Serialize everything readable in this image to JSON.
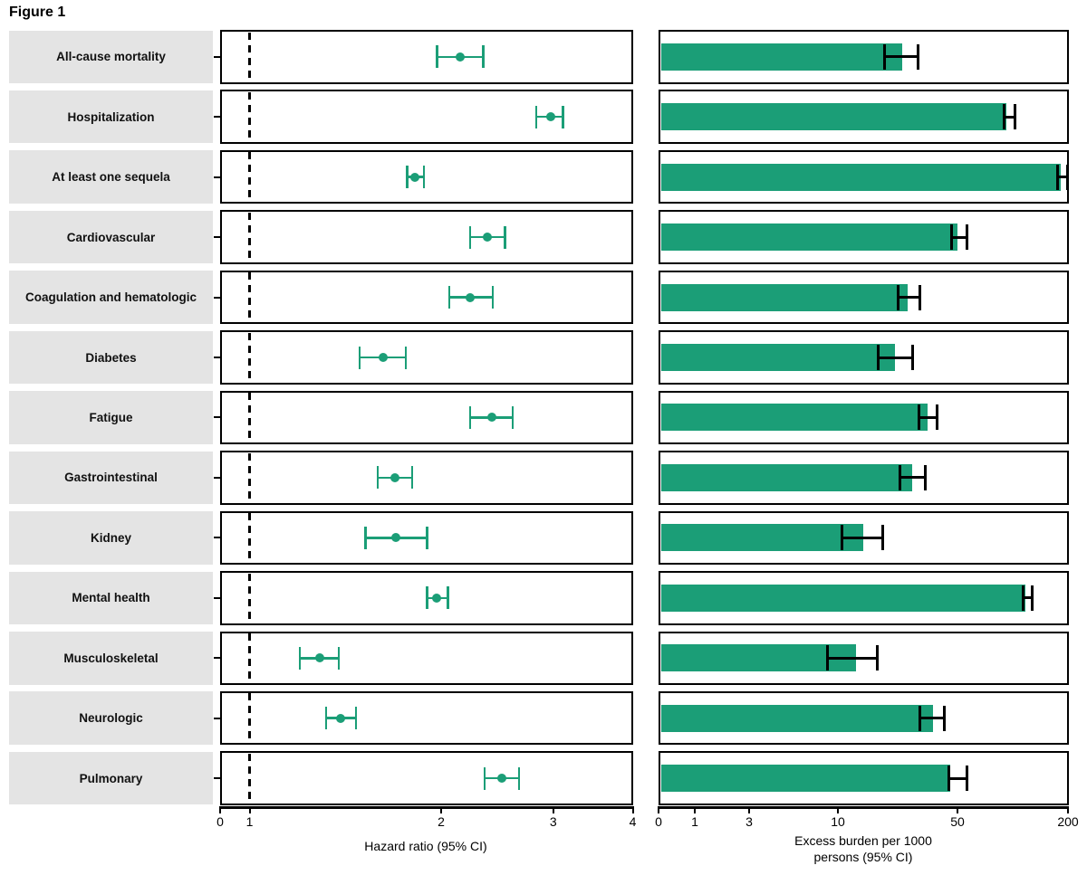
{
  "figure": {
    "title": "Figure 1"
  },
  "colors": {
    "accent_green": "#1B9E77",
    "row_label_bg": "#e4e4e4",
    "axis_black": "#000000"
  },
  "chart_data": [
    {
      "type": "scatter",
      "subtype": "forest-plot-hazard-ratios",
      "title": "",
      "xlabel": "Hazard ratio (95% CI)",
      "x_ticks": [
        0,
        1,
        2,
        3,
        4
      ],
      "x_scale": "log10 from 1 to 4; 0 shown as broken-axis stub at panel left edge",
      "xlim": [
        0,
        4
      ],
      "reference_line_x": 1,
      "grid": false,
      "legend": "none",
      "categories": [
        "All-cause mortality",
        "Hospitalization",
        "At least one sequela",
        "Cardiovascular",
        "Coagulation and hematologic",
        "Diabetes",
        "Fatigue",
        "Gastrointestinal",
        "Kidney",
        "Mental health",
        "Musculoskeletal",
        "Neurologic",
        "Pulmonary"
      ],
      "series": [
        {
          "name": "hazard_ratio",
          "values": [
            2.14,
            2.97,
            1.82,
            2.36,
            2.22,
            1.62,
            2.4,
            1.69,
            1.7,
            1.97,
            1.29,
            1.39,
            2.49
          ],
          "ci_low": [
            1.97,
            2.82,
            1.77,
            2.22,
            2.06,
            1.49,
            2.22,
            1.59,
            1.52,
            1.9,
            1.2,
            1.32,
            2.34
          ],
          "ci_high": [
            2.33,
            3.11,
            1.88,
            2.52,
            2.41,
            1.76,
            2.59,
            1.8,
            1.9,
            2.05,
            1.38,
            1.47,
            2.65
          ]
        }
      ]
    },
    {
      "type": "bar",
      "subtype": "horizontal-bars-with-ci",
      "title": "",
      "xlabel": "Excess burden per 1000\npersons (95% CI)",
      "x_ticks": [
        0,
        1,
        3,
        10,
        50,
        200
      ],
      "x_scale": "nonlinear (log-like) with ticks 0,1,3,10,50,200",
      "xlim": [
        0,
        200
      ],
      "grid": false,
      "legend": "none",
      "categories": [
        "All-cause mortality",
        "Hospitalization",
        "At least one sequela",
        "Cardiovascular",
        "Coagulation and hematologic",
        "Diabetes",
        "Fatigue",
        "Gastrointestinal",
        "Kidney",
        "Mental health",
        "Musculoskeletal",
        "Neurologic",
        "Pulmonary"
      ],
      "series": [
        {
          "name": "excess_burden_per_1000",
          "values": [
            23.7,
            92,
            183,
            50,
            25.5,
            21.6,
            33.4,
            27.3,
            14.1,
            117,
            12.8,
            36,
            45.6
          ],
          "ci_low": [
            18.8,
            90,
            176,
            46,
            22.5,
            17.3,
            29.6,
            23.0,
            10.5,
            113.7,
            8.7,
            30.3,
            44.5
          ],
          "ci_high": [
            29.3,
            103,
            198,
            56.2,
            30.0,
            27.3,
            38.2,
            32.5,
            18.2,
            127.3,
            16.9,
            42.0,
            56.2
          ]
        }
      ]
    }
  ]
}
